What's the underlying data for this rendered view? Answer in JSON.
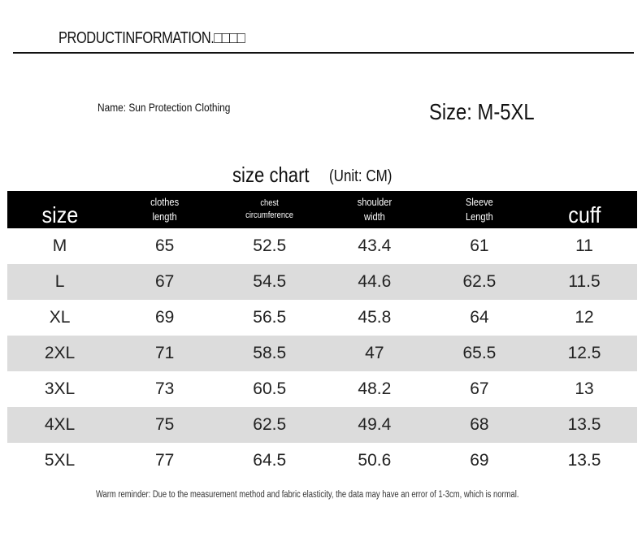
{
  "header": {
    "title": "PRODUCTINFORMATION.□□□□"
  },
  "product": {
    "name": "Name: Sun Protection Clothing",
    "size_range": "Size: M-5XL"
  },
  "chart": {
    "title": "size chart",
    "unit": "(Unit: CM)"
  },
  "table": {
    "headers": [
      "size",
      "clothes\nlength",
      "chest\ncircumference",
      "shoulder\nwidth",
      "Sleeve\nLength",
      "cuff"
    ],
    "rows": [
      [
        "M",
        "65",
        "52.5",
        "43.4",
        "61",
        "11"
      ],
      [
        "L",
        "67",
        "54.5",
        "44.6",
        "62.5",
        "11.5"
      ],
      [
        "XL",
        "69",
        "56.5",
        "45.8",
        "64",
        "12"
      ],
      [
        "2XL",
        "71",
        "58.5",
        "47",
        "65.5",
        "12.5"
      ],
      [
        "3XL",
        "73",
        "60.5",
        "48.2",
        "67",
        "13"
      ],
      [
        "4XL",
        "75",
        "62.5",
        "49.4",
        "68",
        "13.5"
      ],
      [
        "5XL",
        "77",
        "64.5",
        "50.6",
        "69",
        "13.5"
      ]
    ]
  },
  "footnote": "Warm reminder: Due to the measurement method and fabric elasticity, the data may have an error of 1-3cm, which is normal.",
  "colors": {
    "header_bg": "#000000",
    "row_shade": "#dcdcdc"
  }
}
